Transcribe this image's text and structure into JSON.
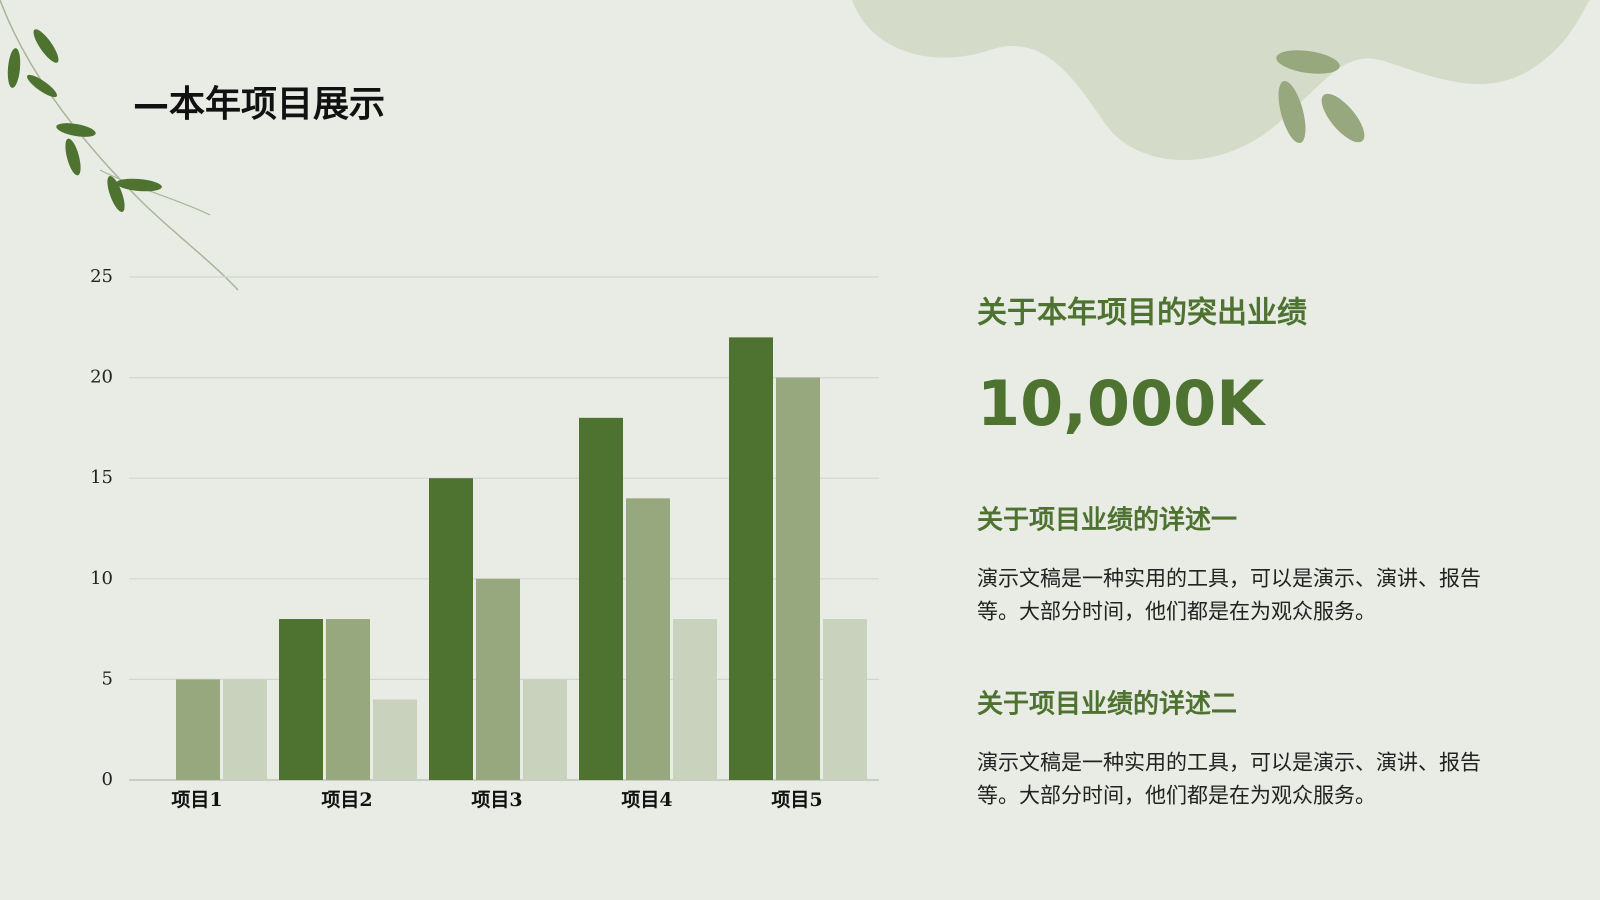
{
  "title": "—本年项目展示",
  "chart_data": {
    "type": "bar",
    "categories": [
      "项目1",
      "项目2",
      "项目3",
      "项目4",
      "项目5"
    ],
    "series": [
      {
        "color": "#4e7230",
        "values": [
          0,
          8,
          15,
          18,
          22
        ]
      },
      {
        "color": "#97a87e",
        "values": [
          5,
          8,
          10,
          14,
          20
        ]
      },
      {
        "color": "#c8d2bc",
        "values": [
          5,
          4,
          5,
          8,
          8
        ]
      }
    ],
    "ylim": [
      0,
      25
    ],
    "yticks": [
      0,
      5,
      10,
      15,
      20,
      25
    ],
    "grid": true
  },
  "panel": {
    "heading": "关于本年项目的突出业绩",
    "figure": "10,000K",
    "sections": [
      {
        "title": "关于项目业绩的详述一",
        "lines": [
          "演示文稿是一种实用的工具，可以是演示、演讲、报告",
          "等。大部分时间，他们都是在为观众服务。"
        ]
      },
      {
        "title": "关于项目业绩的详述二",
        "lines": [
          "演示文稿是一种实用的工具，可以是演示、演讲、报告",
          "等。大部分时间，他们都是在为观众服务。"
        ]
      }
    ]
  }
}
